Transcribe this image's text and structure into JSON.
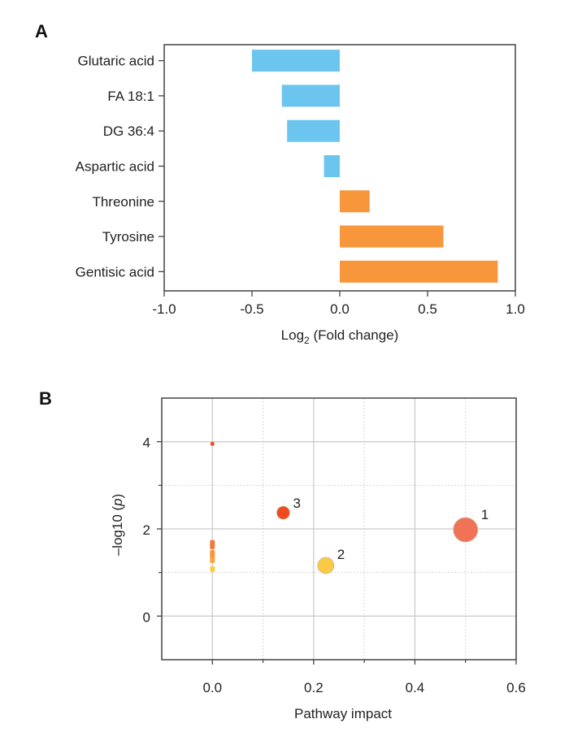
{
  "chart_data": [
    {
      "panel": "A",
      "type": "bar",
      "orientation": "horizontal",
      "categories": [
        "Glutaric acid",
        "FA 18:1",
        "DG 36:4",
        "Aspartic acid",
        "Threonine",
        "Tyrosine",
        "Gentisic acid"
      ],
      "values": [
        -0.5,
        -0.33,
        -0.3,
        -0.09,
        0.17,
        0.59,
        0.9
      ],
      "colors": {
        "negative": "#6CC5EE",
        "positive": "#F7963B"
      },
      "xlabel_main": "Log",
      "xlabel_sub": "2",
      "xlabel_rest": " (Fold change)",
      "xlim": [
        -1.0,
        1.0
      ],
      "xticks": [
        -1.0,
        -0.5,
        0.0,
        0.5,
        1.0
      ],
      "xtick_labels": [
        "-1.0",
        "-0.5",
        "0.0",
        "0.5",
        "1.0"
      ],
      "grid": false
    },
    {
      "panel": "B",
      "type": "scatter",
      "xlabel": "Pathway impact",
      "ylabel_main": "–log10 (",
      "ylabel_italic": "p",
      "ylabel_end": ")",
      "xlim": [
        -0.1,
        0.6
      ],
      "ylim": [
        -1,
        5
      ],
      "xticks": [
        0.0,
        0.2,
        0.4,
        0.6
      ],
      "xtick_labels": [
        "0.0",
        "0.2",
        "0.4",
        "0.6"
      ],
      "xminor": [
        0.1,
        0.3,
        0.5
      ],
      "yticks": [
        0,
        2,
        4
      ],
      "ytick_labels": [
        "0",
        "2",
        "4"
      ],
      "yminor": [
        1,
        3
      ],
      "grid": true,
      "points": [
        {
          "x": 0.5,
          "y": 1.98,
          "size": "large",
          "color": "#F07358",
          "label": "1"
        },
        {
          "x": 0.224,
          "y": 1.16,
          "size": "medium",
          "color": "#FBC945",
          "label": "2"
        },
        {
          "x": 0.14,
          "y": 2.37,
          "size": "medium-small",
          "color": "#EE4A1E",
          "label": "3"
        },
        {
          "x": 0.0,
          "y": 3.95,
          "size": "tiny",
          "color": "#EE4A1E",
          "label": ""
        },
        {
          "x": 0.0,
          "y": 1.68,
          "size": "tiny",
          "color": "#F07A3C",
          "label": ""
        },
        {
          "x": 0.0,
          "y": 1.6,
          "size": "tiny",
          "color": "#F07A3C",
          "label": ""
        },
        {
          "x": 0.0,
          "y": 1.45,
          "size": "tiny",
          "color": "#F7963B",
          "label": ""
        },
        {
          "x": 0.0,
          "y": 1.38,
          "size": "tiny",
          "color": "#F7963B",
          "label": ""
        },
        {
          "x": 0.0,
          "y": 1.28,
          "size": "tiny",
          "color": "#F7A640",
          "label": ""
        },
        {
          "x": 0.0,
          "y": 1.08,
          "size": "tiny",
          "color": "#FBC945",
          "label": ""
        }
      ]
    }
  ],
  "panels": {
    "a_label": "A",
    "b_label": "B"
  }
}
